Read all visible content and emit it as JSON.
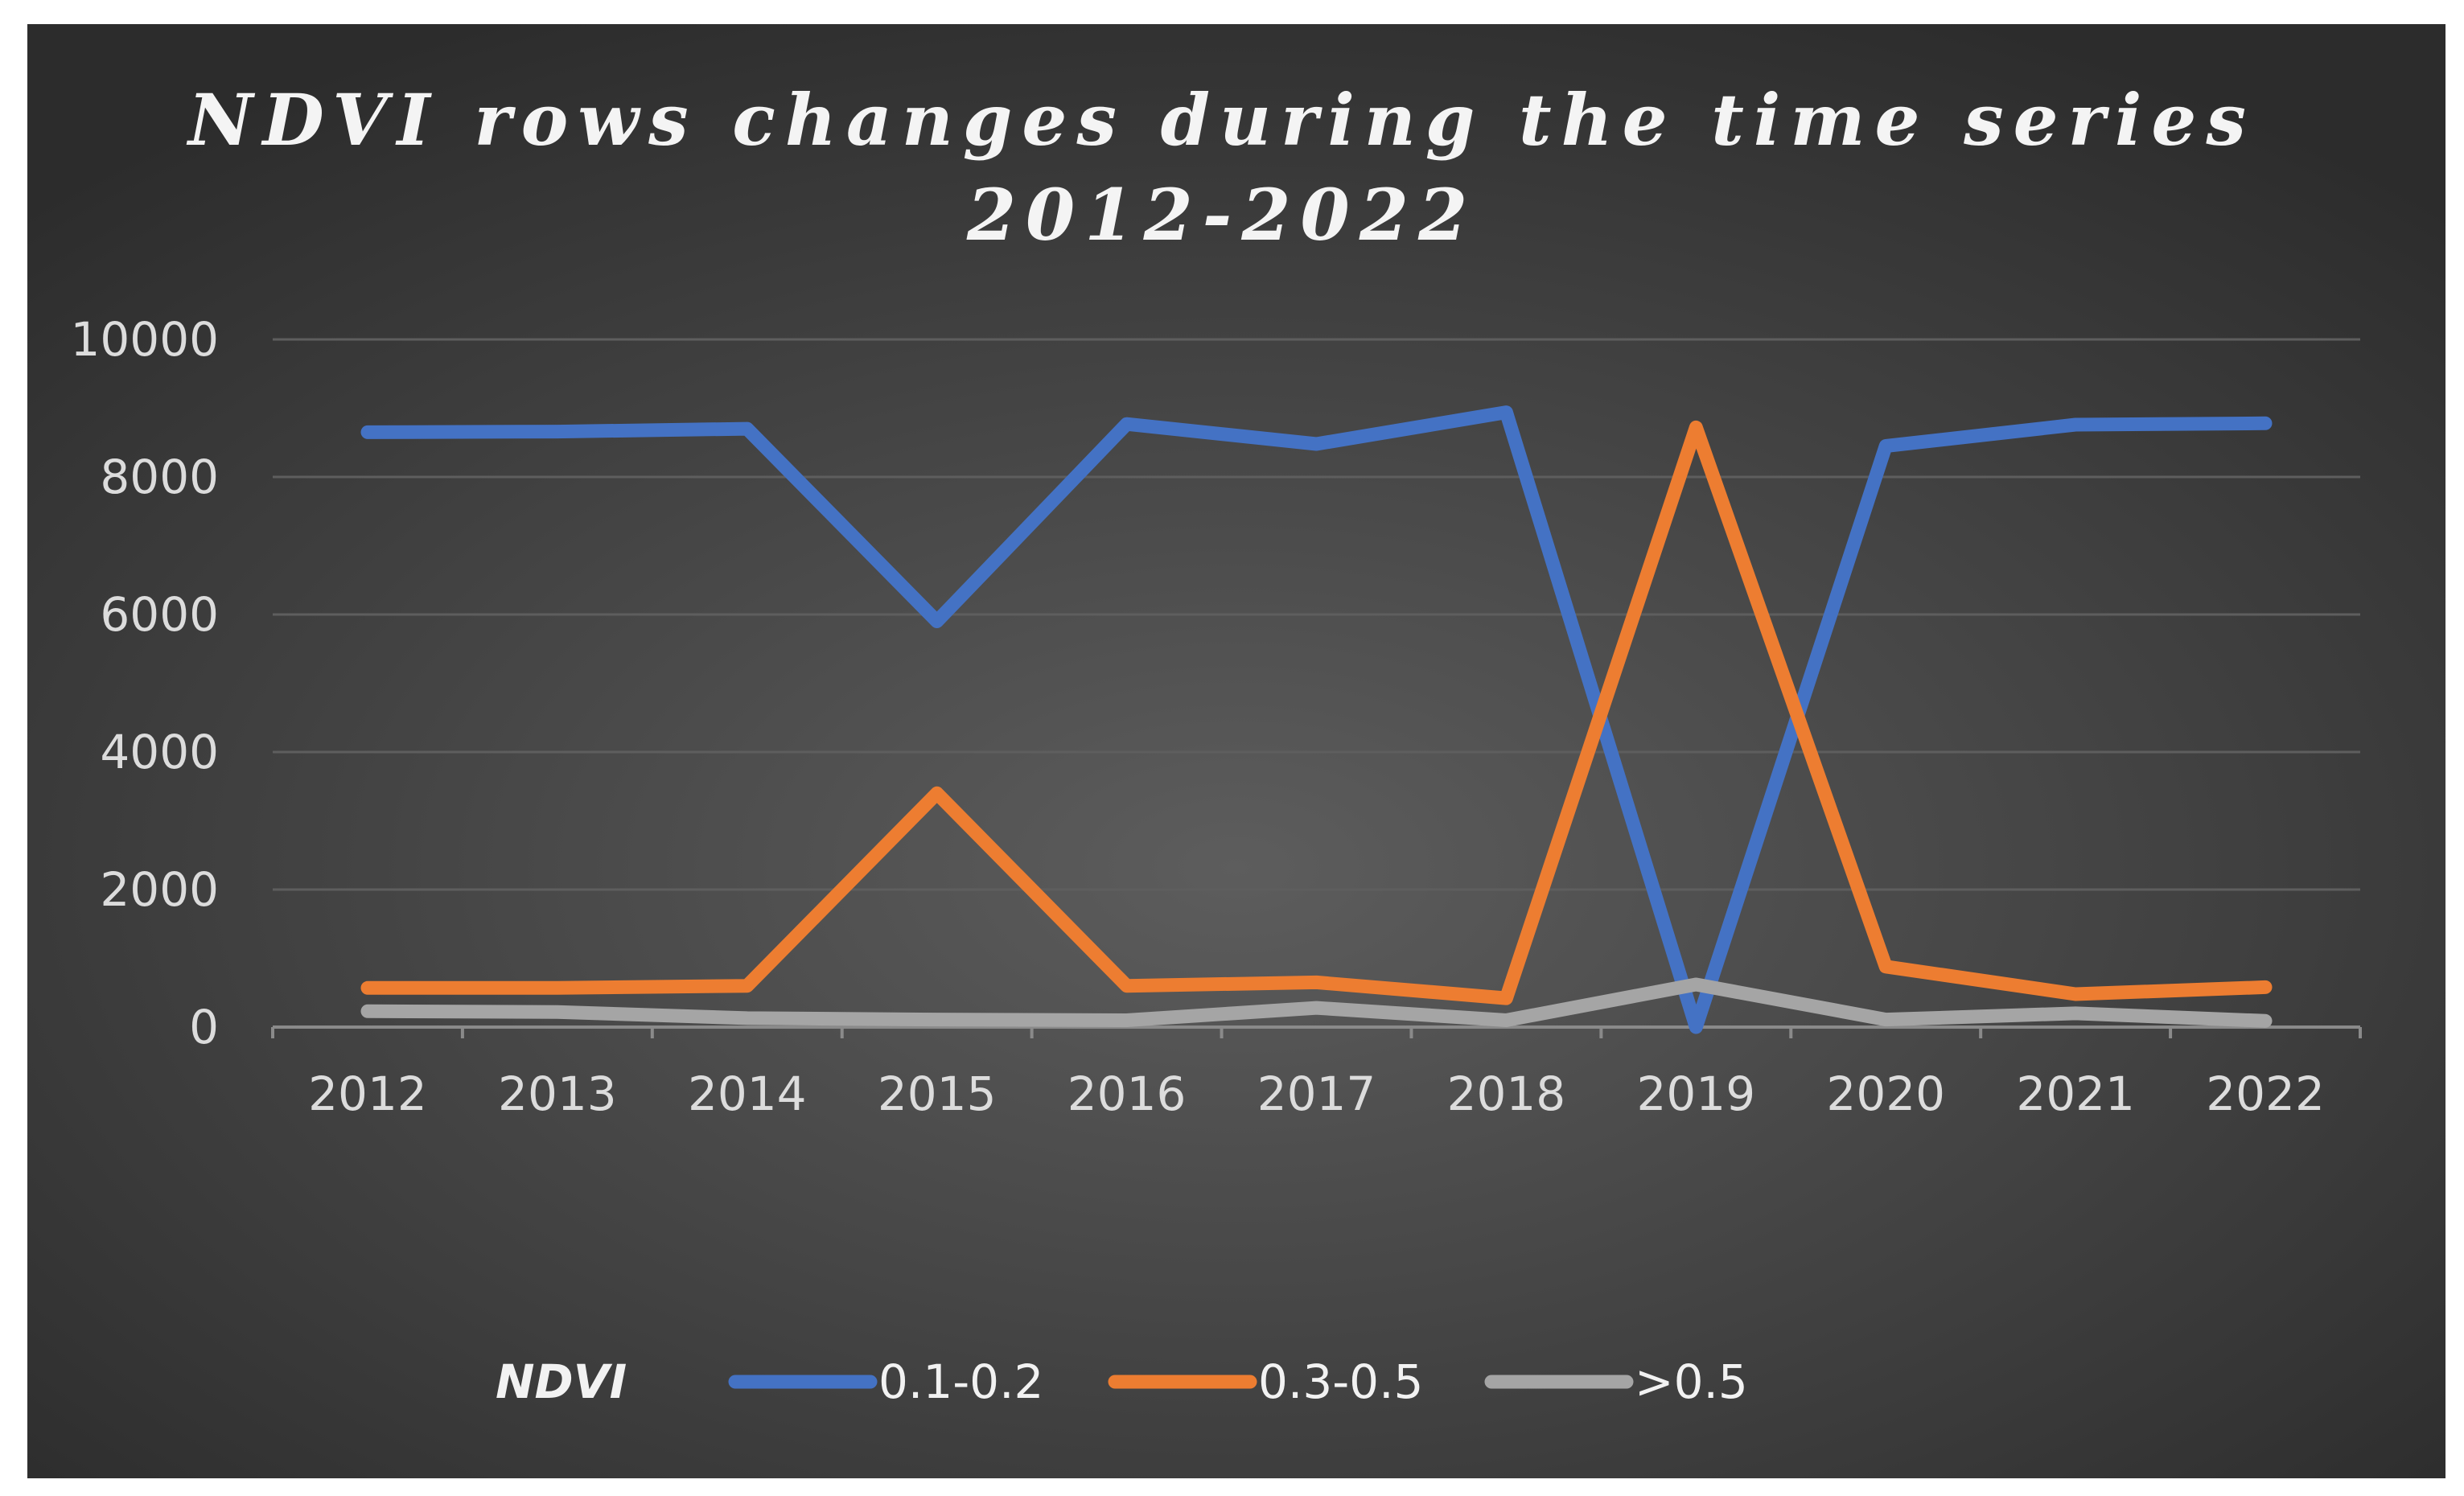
{
  "chart_data": {
    "type": "line",
    "title_lines": [
      "NDVI rows changes during the time series",
      "2012-2022"
    ],
    "categories": [
      "2012",
      "2013",
      "2014",
      "2015",
      "2016",
      "2017",
      "2018",
      "2019",
      "2020",
      "2021",
      "2022"
    ],
    "ylim": [
      0,
      10000
    ],
    "yticks": [
      "0",
      "2000",
      "4000",
      "6000",
      "8000",
      "10000"
    ],
    "grid": true,
    "legend": {
      "title": "NDVI",
      "position": "bottom"
    },
    "series": [
      {
        "name": "0.1-0.2",
        "color": "#4472c4",
        "values": [
          8650,
          8660,
          8700,
          5900,
          8770,
          8480,
          8940,
          0,
          8450,
          8760,
          8780
        ]
      },
      {
        "name": "0.3-0.5",
        "color": "#ed7d31",
        "values": [
          570,
          570,
          600,
          3400,
          600,
          650,
          420,
          8720,
          880,
          480,
          580
        ]
      },
      {
        "name": ">0.5",
        "color": "#a5a5a5",
        "values": [
          230,
          220,
          130,
          110,
          100,
          280,
          100,
          620,
          110,
          200,
          90
        ]
      }
    ]
  }
}
